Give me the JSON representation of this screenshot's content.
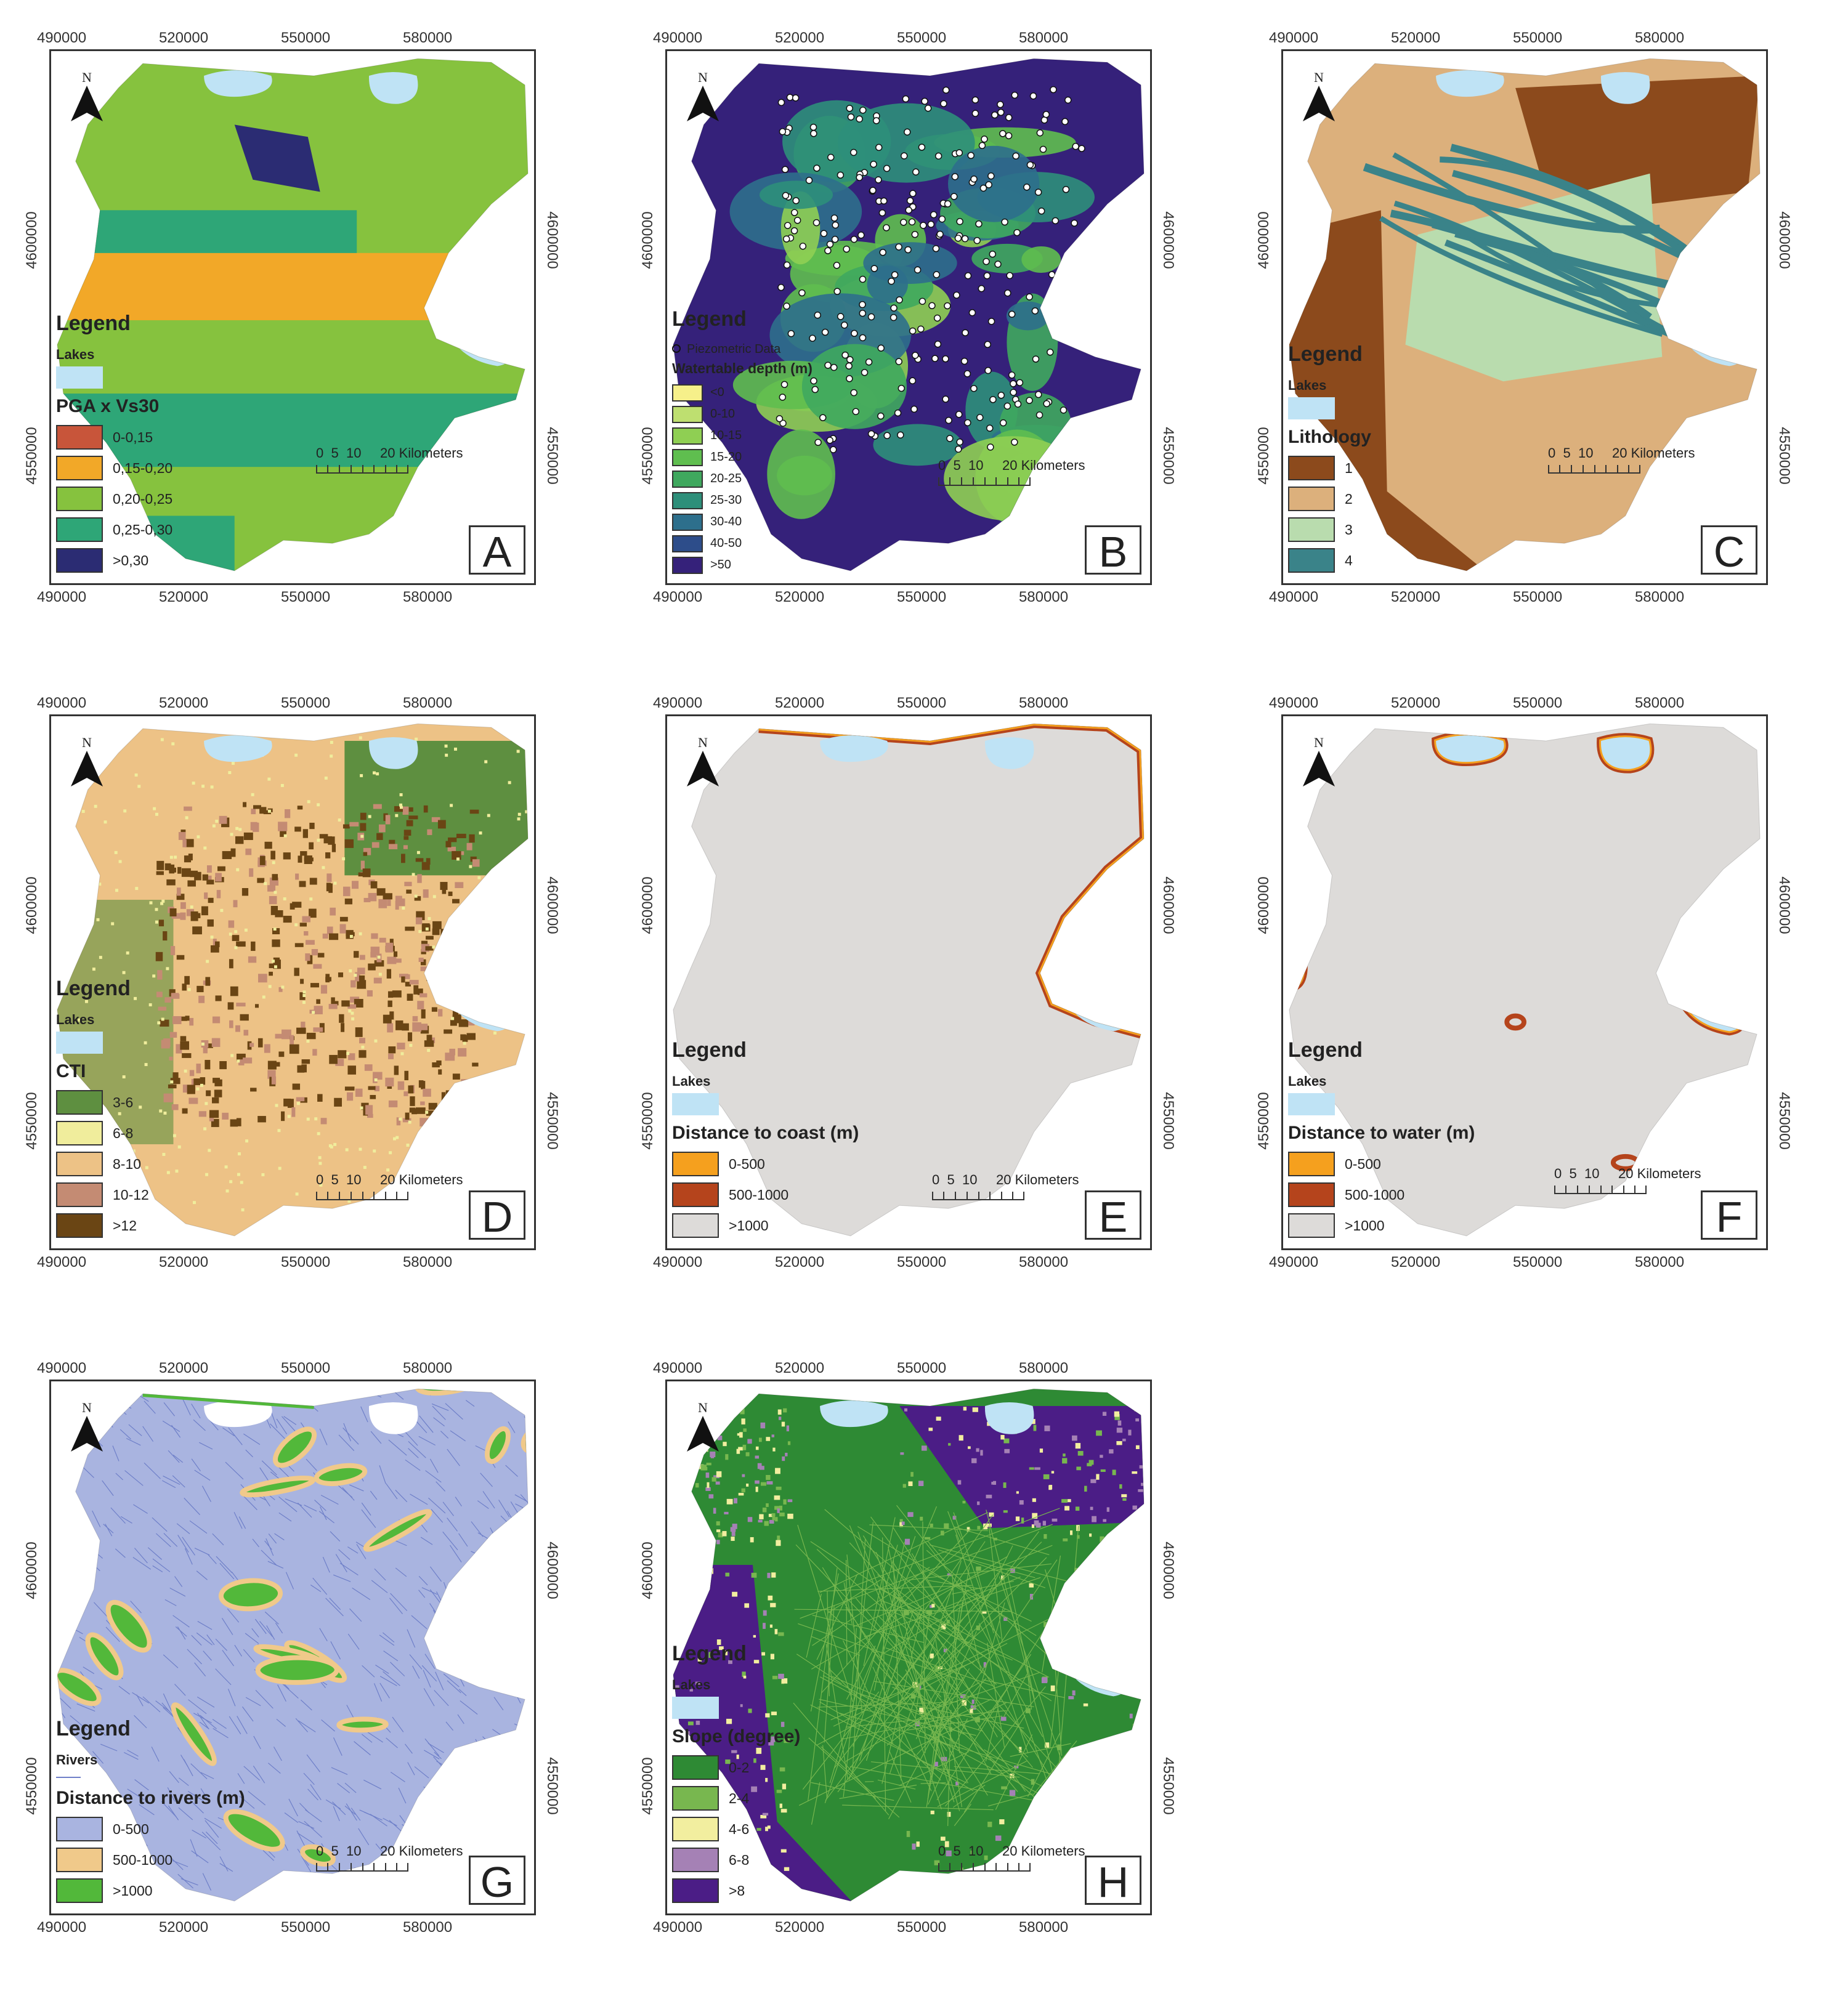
{
  "north_label": "N",
  "lakes_label": "Lakes",
  "legend_title": "Legend",
  "scale": {
    "labels": [
      "0",
      "5",
      "10",
      "20 Kilometers"
    ]
  },
  "axes": {
    "x_ticks": [
      "490000",
      "520000",
      "550000",
      "580000"
    ],
    "y_ticks": [
      "4600000",
      "4550000"
    ]
  },
  "colors": {
    "lake": "#bfe3f5",
    "background_gray": "#dddbd9"
  },
  "panels": {
    "A": {
      "letter": "A",
      "subtitle": "PGA x Vs30",
      "show_lakes": true,
      "classes": [
        {
          "label": "0-0,15",
          "color": "#c8553a"
        },
        {
          "label": "0,15-0,20",
          "color": "#f2a828"
        },
        {
          "label": "0,20-0,25",
          "color": "#86c23e"
        },
        {
          "label": "0,25-0,30",
          "color": "#2ea677"
        },
        {
          "label": ">0,30",
          "color": "#2b2c73"
        }
      ]
    },
    "B": {
      "letter": "B",
      "point_label": "Piezometric Data",
      "subtitle": "Watertable depth (m)",
      "show_lakes": false,
      "classes": [
        {
          "label": "<0",
          "color": "#f6f08a"
        },
        {
          "label": "0-10",
          "color": "#bedf70"
        },
        {
          "label": "10-15",
          "color": "#8fcf53"
        },
        {
          "label": "15-20",
          "color": "#5fbe4f"
        },
        {
          "label": "20-25",
          "color": "#3fa85e"
        },
        {
          "label": "25-30",
          "color": "#2e8f7a"
        },
        {
          "label": "30-40",
          "color": "#2d6f8c"
        },
        {
          "label": "40-50",
          "color": "#2d4d8a"
        },
        {
          "label": ">50",
          "color": "#35217a"
        }
      ]
    },
    "C": {
      "letter": "C",
      "subtitle": "Lithology",
      "show_lakes": true,
      "classes": [
        {
          "label": "1",
          "color": "#8c4a1c"
        },
        {
          "label": "2",
          "color": "#dcb07c"
        },
        {
          "label": "3",
          "color": "#b9dcae"
        },
        {
          "label": "4",
          "color": "#3a8389"
        }
      ]
    },
    "D": {
      "letter": "D",
      "subtitle": "CTI",
      "show_lakes": true,
      "classes": [
        {
          "label": "3-6",
          "color": "#5e8f40"
        },
        {
          "label": "6-8",
          "color": "#f0ed9c"
        },
        {
          "label": "8-10",
          "color": "#edc286"
        },
        {
          "label": "10-12",
          "color": "#c48b73"
        },
        {
          "label": ">12",
          "color": "#6a4514"
        }
      ]
    },
    "E": {
      "letter": "E",
      "subtitle": "Distance to coast (m)",
      "show_lakes": true,
      "classes": [
        {
          "label": "0-500",
          "color": "#f5a01e"
        },
        {
          "label": "500-1000",
          "color": "#b5441c"
        },
        {
          "label": ">1000",
          "color": "#dddbd9"
        }
      ]
    },
    "F": {
      "letter": "F",
      "subtitle": "Distance to water (m)",
      "show_lakes": true,
      "classes": [
        {
          "label": "0-500",
          "color": "#f5a01e"
        },
        {
          "label": "500-1000",
          "color": "#b5441c"
        },
        {
          "label": ">1000",
          "color": "#dddbd9"
        }
      ]
    },
    "G": {
      "letter": "G",
      "rivers_label": "Rivers",
      "subtitle": "Distance to rivers (m)",
      "show_lakes": false,
      "classes": [
        {
          "label": "0-500",
          "color": "#a9b4e0"
        },
        {
          "label": "500-1000",
          "color": "#f0c98a"
        },
        {
          "label": ">1000",
          "color": "#52b83a"
        }
      ]
    },
    "H": {
      "letter": "H",
      "subtitle": "Slope (degree)",
      "show_lakes": true,
      "classes": [
        {
          "label": "0-2",
          "color": "#2e8a34"
        },
        {
          "label": "2-4",
          "color": "#78b74f"
        },
        {
          "label": "4-6",
          "color": "#f2ee9f"
        },
        {
          "label": "6-8",
          "color": "#a581b5"
        },
        {
          "label": ">8",
          "color": "#4b1d86"
        }
      ]
    }
  }
}
